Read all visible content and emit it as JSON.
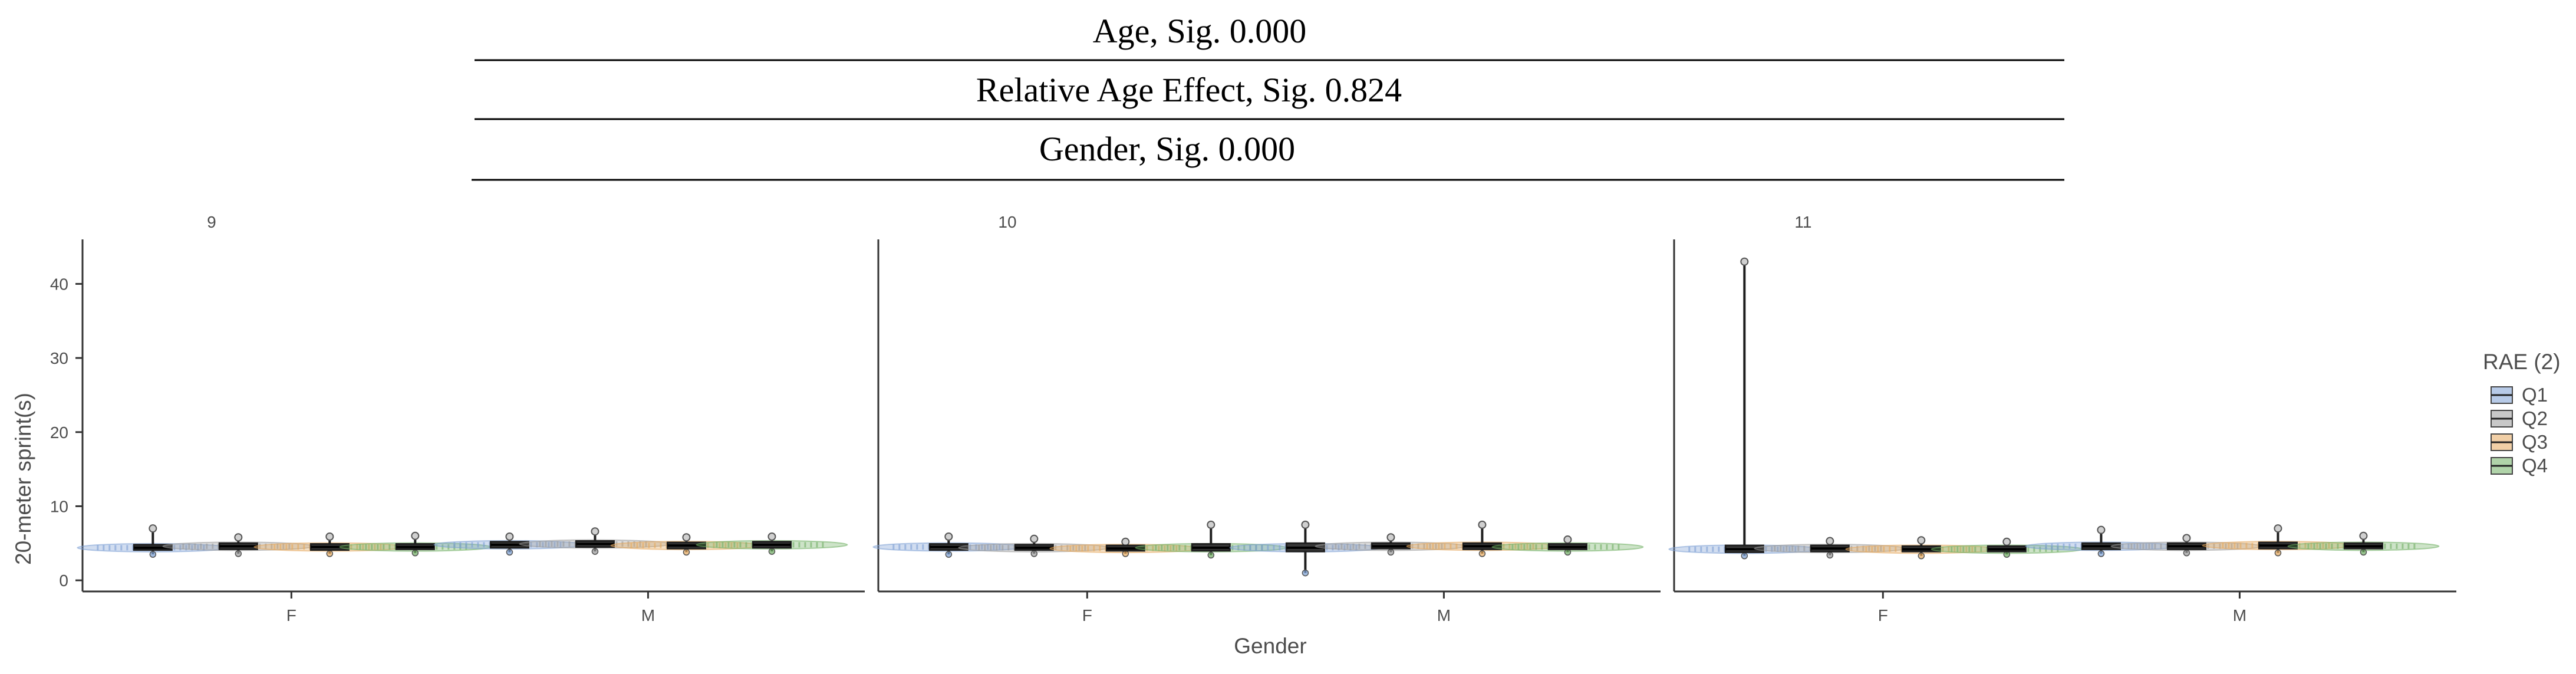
{
  "chart_data": {
    "type": "box-violin",
    "stats_header": [
      "Age, Sig. 0.000",
      "Relative Age Effect, Sig. 0.824",
      "Gender, Sig. 0.000"
    ],
    "facet_labels": [
      "9",
      "10",
      "11"
    ],
    "categories": [
      "F",
      "M"
    ],
    "xlabel": "Gender",
    "ylabel": "20-meter sprint(s)",
    "ylim": [
      -1.5,
      46
    ],
    "yticks": [
      0,
      10,
      20,
      30,
      40
    ],
    "legend": {
      "title": "RAE (2)",
      "entries": [
        "Q1",
        "Q2",
        "Q3",
        "Q4"
      ],
      "placement": "right"
    },
    "colors": {
      "Q1": "#7b9fd4",
      "Q2": "#9a9a9a",
      "Q3": "#e6a85c",
      "Q4": "#6fae62",
      "box": "#1f1f1f",
      "axis": "#333333"
    },
    "boxes": [
      {
        "facet": "9",
        "gender": "F",
        "group": "Q1",
        "min": 3.5,
        "q1": 4.1,
        "median": 4.4,
        "q3": 4.8,
        "max": 7.0
      },
      {
        "facet": "9",
        "gender": "F",
        "group": "Q2",
        "min": 3.6,
        "q1": 4.2,
        "median": 4.6,
        "q3": 5.0,
        "max": 5.8
      },
      {
        "facet": "9",
        "gender": "F",
        "group": "Q3",
        "min": 3.6,
        "q1": 4.1,
        "median": 4.5,
        "q3": 4.9,
        "max": 5.9
      },
      {
        "facet": "9",
        "gender": "F",
        "group": "Q4",
        "min": 3.7,
        "q1": 4.2,
        "median": 4.5,
        "q3": 4.9,
        "max": 6.0
      },
      {
        "facet": "9",
        "gender": "M",
        "group": "Q1",
        "min": 3.8,
        "q1": 4.4,
        "median": 4.8,
        "q3": 5.2,
        "max": 5.9
      },
      {
        "facet": "9",
        "gender": "M",
        "group": "Q2",
        "min": 3.9,
        "q1": 4.5,
        "median": 4.9,
        "q3": 5.3,
        "max": 6.6
      },
      {
        "facet": "9",
        "gender": "M",
        "group": "Q3",
        "min": 3.8,
        "q1": 4.3,
        "median": 4.7,
        "q3": 5.1,
        "max": 5.8
      },
      {
        "facet": "9",
        "gender": "M",
        "group": "Q4",
        "min": 3.9,
        "q1": 4.4,
        "median": 4.8,
        "q3": 5.2,
        "max": 5.9
      },
      {
        "facet": "10",
        "gender": "F",
        "group": "Q1",
        "min": 3.5,
        "q1": 4.1,
        "median": 4.5,
        "q3": 4.9,
        "max": 5.9
      },
      {
        "facet": "10",
        "gender": "F",
        "group": "Q2",
        "min": 3.6,
        "q1": 4.1,
        "median": 4.4,
        "q3": 4.8,
        "max": 5.6
      },
      {
        "facet": "10",
        "gender": "F",
        "group": "Q3",
        "min": 3.6,
        "q1": 4.0,
        "median": 4.3,
        "q3": 4.7,
        "max": 5.2
      },
      {
        "facet": "10",
        "gender": "F",
        "group": "Q4",
        "min": 3.4,
        "q1": 4.0,
        "median": 4.4,
        "q3": 4.9,
        "max": 7.5
      },
      {
        "facet": "10",
        "gender": "M",
        "group": "Q1",
        "min": 1.0,
        "q1": 3.9,
        "median": 4.4,
        "q3": 5.0,
        "max": 7.5
      },
      {
        "facet": "10",
        "gender": "M",
        "group": "Q2",
        "min": 3.8,
        "q1": 4.3,
        "median": 4.6,
        "q3": 5.0,
        "max": 5.8
      },
      {
        "facet": "10",
        "gender": "M",
        "group": "Q3",
        "min": 3.6,
        "q1": 4.2,
        "median": 4.6,
        "q3": 5.0,
        "max": 7.5
      },
      {
        "facet": "10",
        "gender": "M",
        "group": "Q4",
        "min": 3.8,
        "q1": 4.2,
        "median": 4.5,
        "q3": 4.9,
        "max": 5.5
      },
      {
        "facet": "11",
        "gender": "F",
        "group": "Q1",
        "min": 3.3,
        "q1": 3.8,
        "median": 4.2,
        "q3": 4.7,
        "max": 43.0
      },
      {
        "facet": "11",
        "gender": "F",
        "group": "Q2",
        "min": 3.4,
        "q1": 3.9,
        "median": 4.3,
        "q3": 4.7,
        "max": 5.3
      },
      {
        "facet": "11",
        "gender": "F",
        "group": "Q3",
        "min": 3.3,
        "q1": 3.9,
        "median": 4.2,
        "q3": 4.6,
        "max": 5.4
      },
      {
        "facet": "11",
        "gender": "F",
        "group": "Q4",
        "min": 3.5,
        "q1": 3.9,
        "median": 4.2,
        "q3": 4.6,
        "max": 5.2
      },
      {
        "facet": "11",
        "gender": "M",
        "group": "Q1",
        "min": 3.6,
        "q1": 4.2,
        "median": 4.6,
        "q3": 5.0,
        "max": 6.8
      },
      {
        "facet": "11",
        "gender": "M",
        "group": "Q2",
        "min": 3.7,
        "q1": 4.2,
        "median": 4.6,
        "q3": 5.0,
        "max": 5.7
      },
      {
        "facet": "11",
        "gender": "M",
        "group": "Q3",
        "min": 3.7,
        "q1": 4.3,
        "median": 4.7,
        "q3": 5.1,
        "max": 7.0
      },
      {
        "facet": "11",
        "gender": "M",
        "group": "Q4",
        "min": 3.8,
        "q1": 4.3,
        "median": 4.6,
        "q3": 5.0,
        "max": 6.0
      }
    ]
  }
}
